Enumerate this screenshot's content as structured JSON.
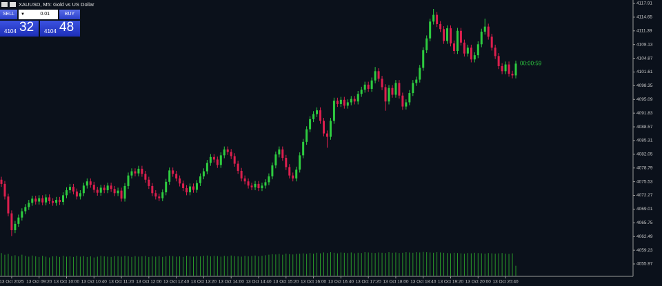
{
  "chart_data": {
    "type": "candlestick",
    "title": "XAUUSD, M5:  Gold vs US Dollar",
    "countdown": "00:00:59",
    "categories": [
      null,
      null,
      null,
      "13 Oct 2025",
      null,
      null,
      null,
      null,
      null,
      null,
      null,
      "13 Oct 09:20",
      null,
      null,
      null,
      null,
      null,
      null,
      null,
      "13 Oct 10:00",
      null,
      null,
      null,
      null,
      null,
      null,
      null,
      "13 Oct 10:40",
      null,
      null,
      null,
      null,
      null,
      null,
      null,
      "13 Oct 11:20",
      null,
      null,
      null,
      null,
      null,
      null,
      null,
      "13 Oct 12:00",
      null,
      null,
      null,
      null,
      null,
      null,
      null,
      "13 Oct 12:40",
      null,
      null,
      null,
      null,
      null,
      null,
      null,
      "13 Oct 13:20",
      null,
      null,
      null,
      null,
      null,
      null,
      null,
      "13 Oct 14:00",
      null,
      null,
      null,
      null,
      null,
      null,
      null,
      "13 Oct 14:40",
      null,
      null,
      null,
      null,
      null,
      null,
      null,
      "13 Oct 15:20",
      null,
      null,
      null,
      null,
      null,
      null,
      null,
      "13 Oct 16:00",
      null,
      null,
      null,
      null,
      null,
      null,
      null,
      "13 Oct 16:40",
      null,
      null,
      null,
      null,
      null,
      null,
      null,
      "13 Oct 17:20",
      null,
      null,
      null,
      null,
      null,
      null,
      null,
      "13 Oct 18:00",
      null,
      null,
      null,
      null,
      null,
      null,
      null,
      "13 Oct 18:40",
      null,
      null,
      null,
      null,
      null,
      null,
      null,
      "13 Oct 19:20",
      null,
      null,
      null,
      null,
      null,
      null,
      null,
      "13 Oct 20:00",
      null,
      null,
      null,
      null,
      null,
      null,
      null,
      "13 Oct 20:40",
      null,
      null,
      null
    ],
    "open": [
      4076,
      4075,
      4072,
      4068,
      4064,
      4065.5,
      4067,
      4068.5,
      4069.5,
      4070.5,
      4071.5,
      4070.8,
      4071.6,
      4070.6,
      4071.8,
      4070.9,
      4070.5,
      4071.2,
      4070.7,
      4072.3,
      4073.5,
      4074.3,
      4073.2,
      4072.0,
      4072.8,
      4074.6,
      4075.6,
      4074.8,
      4073.6,
      4072.9,
      4074.1,
      4073.5,
      4074.6,
      4073.8,
      4072.8,
      4073.4,
      4071.5,
      4074.5,
      4077.0,
      4078.0,
      4077.5,
      4078.6,
      4077.4,
      4076.0,
      4074.5,
      4072.8,
      4072.0,
      4071.6,
      4073.0,
      4075.5,
      4078.2,
      4077.4,
      4076.3,
      4075.1,
      4074.0,
      4073.0,
      4074.4,
      4073.6,
      4075.2,
      4076.8,
      4078.0,
      4080.0,
      4081.4,
      4080.8,
      4079.5,
      4081.8,
      4083.2,
      4082.6,
      4081.6,
      4079.8,
      4078.1,
      4076.3,
      4075.6,
      4074.6,
      4074.2,
      4075.0,
      4074.0,
      4074.6,
      4075.4,
      4076.8,
      4079.4,
      4082.0,
      4083.2,
      4081.2,
      4079.0,
      4077.0,
      4076.3,
      4078.4,
      4081.8,
      4085.0,
      4088.0,
      4090.4,
      4091.6,
      4092.5,
      4090.0,
      4087.0,
      4086.2,
      4090.0,
      4094.8,
      4094.0,
      4095.0,
      4093.6,
      4094.4,
      4095.2,
      4094.6,
      4096.4,
      4097.4,
      4098.6,
      4097.6,
      4099.6,
      4101.8,
      4100.0,
      4098.0,
      4094.6,
      4097.8,
      4096.2,
      4099.0,
      4096.0,
      4093.4,
      4094.4,
      4096.6,
      4099.0,
      4099.8,
      4102.6,
      4106.8,
      4109.6,
      4113.6,
      4115.2,
      4113.0,
      4111.8,
      4109.0,
      4112.0,
      4108.4,
      4106.6,
      4111.4,
      4108.6,
      4106.0,
      4107.4,
      4104.6,
      4105.6,
      4108.2,
      4111.2,
      4112.4,
      4110.0,
      4107.4,
      4105.4,
      4103.0,
      4101.8,
      4103.4,
      4101.2,
      4100.8
    ],
    "high": [
      4076.7,
      4075.7,
      4072.7,
      4068.7,
      4066.2,
      4067.7,
      4069.2,
      4070.2,
      4071.2,
      4072.2,
      4072.2,
      4072.3,
      4072.3,
      4072.5,
      4072.5,
      4071.6,
      4071.9,
      4071.9,
      4073.0,
      4074.2,
      4075.0,
      4075.0,
      4073.9,
      4073.5,
      4075.3,
      4076.3,
      4076.3,
      4075.5,
      4074.3,
      4074.8,
      4074.8,
      4075.3,
      4075.3,
      4074.5,
      4074.1,
      4074.1,
      4075.2,
      4077.7,
      4078.7,
      4078.7,
      4079.3,
      4079.3,
      4078.1,
      4076.7,
      4075.2,
      4073.5,
      4072.7,
      4073.7,
      4076.2,
      4078.9,
      4078.9,
      4078.1,
      4077.0,
      4075.8,
      4074.7,
      4075.1,
      4075.1,
      4075.9,
      4077.5,
      4078.7,
      4080.7,
      4082.1,
      4082.1,
      4081.5,
      4082.5,
      4083.9,
      4083.9,
      4083.3,
      4082.3,
      4080.5,
      4078.8,
      4077.0,
      4076.3,
      4075.3,
      4075.7,
      4075.7,
      4075.3,
      4076.1,
      4077.5,
      4080.1,
      4082.7,
      4083.9,
      4083.9,
      4081.9,
      4079.7,
      4077.7,
      4079.1,
      4082.5,
      4085.7,
      4088.7,
      4091.1,
      4092.3,
      4093.2,
      4093.2,
      4090.7,
      4087.7,
      4090.7,
      4095.5,
      4095.5,
      4095.7,
      4095.7,
      4095.1,
      4095.9,
      4095.9,
      4097.1,
      4098.1,
      4099.3,
      4099.3,
      4100.3,
      4102.8,
      4102.5,
      4100.7,
      4098.7,
      4098.5,
      4098.5,
      4099.7,
      4099.7,
      4096.7,
      4095.1,
      4097.3,
      4099.7,
      4100.5,
      4103.3,
      4107.5,
      4110.3,
      4114.3,
      4116.6,
      4115.9,
      4113.7,
      4112.5,
      4112.7,
      4112.7,
      4109.1,
      4112.1,
      4112.1,
      4109.3,
      4108.1,
      4108.1,
      4106.3,
      4108.9,
      4111.9,
      4114.3,
      4113.1,
      4110.7,
      4108.1,
      4106.1,
      4103.7,
      4104.1,
      4104.1,
      4101.9,
      4104.3
    ],
    "low": [
      4074.3,
      4071.3,
      4067.3,
      4062.6,
      4063.3,
      4064.8,
      4066.3,
      4067.8,
      4068.8,
      4069.8,
      4070.1,
      4070.1,
      4069.9,
      4069.9,
      4070.2,
      4069.8,
      4069.8,
      4070.0,
      4070.0,
      4071.6,
      4072.8,
      4072.5,
      4071.3,
      4071.3,
      4072.1,
      4073.9,
      4074.1,
      4072.9,
      4072.2,
      4072.2,
      4072.8,
      4072.8,
      4073.1,
      4072.1,
      4072.1,
      4070.8,
      4070.8,
      4073.8,
      4076.3,
      4076.8,
      4076.8,
      4076.7,
      4075.3,
      4073.8,
      4072.1,
      4071.3,
      4070.9,
      4070.9,
      4072.3,
      4074.8,
      4076.7,
      4075.6,
      4074.4,
      4073.3,
      4072.3,
      4072.3,
      4072.9,
      4072.9,
      4074.5,
      4076.1,
      4077.3,
      4079.3,
      4080.1,
      4078.8,
      4078.8,
      4081.1,
      4081.9,
      4080.9,
      4079.1,
      4077.4,
      4075.6,
      4074.9,
      4073.9,
      4073.5,
      4073.5,
      4073.3,
      4073.3,
      4073.9,
      4074.7,
      4076.1,
      4078.7,
      4081.3,
      4080.5,
      4078.3,
      4076.3,
      4075.6,
      4075.6,
      4077.7,
      4081.1,
      4084.3,
      4087.3,
      4089.7,
      4090.9,
      4089.3,
      4086.3,
      4083.6,
      4085.5,
      4089.3,
      4093.3,
      4093.3,
      4092.9,
      4092.9,
      4093.7,
      4093.9,
      4093.9,
      4095.7,
      4096.7,
      4096.9,
      4096.9,
      4098.9,
      4099.3,
      4097.3,
      4092.4,
      4093.9,
      4095.5,
      4095.5,
      4095.3,
      4092.6,
      4092.7,
      4093.7,
      4095.9,
      4098.3,
      4099.1,
      4101.9,
      4106.1,
      4108.9,
      4112.9,
      4112.3,
      4111.1,
      4108.3,
      4108.3,
      4107.7,
      4105.9,
      4105.9,
      4107.9,
      4105.3,
      4105.3,
      4103.9,
      4103.9,
      4104.9,
      4107.5,
      4110.5,
      4109.3,
      4106.7,
      4104.7,
      4102.3,
      4101.1,
      4101.1,
      4100.5,
      4100.1,
      4100.1
    ],
    "close": [
      4075,
      4072,
      4068,
      4064,
      4065.5,
      4067,
      4068.5,
      4069.5,
      4070.5,
      4071.5,
      4070.8,
      4071.6,
      4070.6,
      4071.8,
      4070.9,
      4070.5,
      4071.2,
      4070.7,
      4072.3,
      4073.5,
      4074.3,
      4073.2,
      4072.0,
      4072.8,
      4074.6,
      4075.6,
      4074.8,
      4073.6,
      4072.9,
      4074.1,
      4073.5,
      4074.6,
      4073.8,
      4072.8,
      4073.4,
      4071.5,
      4074.5,
      4077.0,
      4078.0,
      4077.5,
      4078.6,
      4077.4,
      4076.0,
      4074.5,
      4072.8,
      4072.0,
      4071.6,
      4073.0,
      4075.5,
      4078.2,
      4077.4,
      4076.3,
      4075.1,
      4074.0,
      4073.0,
      4074.4,
      4073.6,
      4075.2,
      4076.8,
      4078.0,
      4080.0,
      4081.4,
      4080.8,
      4079.5,
      4081.8,
      4083.2,
      4082.6,
      4081.6,
      4079.8,
      4078.1,
      4076.3,
      4075.6,
      4074.6,
      4074.2,
      4075.0,
      4074.0,
      4074.6,
      4075.4,
      4076.8,
      4079.4,
      4082.0,
      4083.2,
      4081.2,
      4079.0,
      4077.0,
      4076.3,
      4078.4,
      4081.8,
      4085.0,
      4088.0,
      4090.4,
      4091.6,
      4092.5,
      4090.0,
      4087.0,
      4086.2,
      4090.0,
      4094.8,
      4094.0,
      4095.0,
      4093.6,
      4094.4,
      4095.2,
      4094.6,
      4096.4,
      4097.4,
      4098.6,
      4097.6,
      4099.6,
      4101.8,
      4100.0,
      4098.0,
      4094.6,
      4097.8,
      4096.2,
      4099.0,
      4096.0,
      4093.4,
      4094.4,
      4096.6,
      4099.0,
      4099.8,
      4102.6,
      4106.8,
      4109.6,
      4113.6,
      4115.2,
      4113.0,
      4111.8,
      4109.0,
      4112.0,
      4108.4,
      4106.6,
      4111.4,
      4108.6,
      4106.0,
      4107.4,
      4104.6,
      4105.6,
      4108.2,
      4111.2,
      4112.4,
      4110.0,
      4107.4,
      4105.4,
      4103.0,
      4101.8,
      4103.4,
      4101.2,
      4100.8,
      4103.6
    ],
    "volume": [
      820,
      760,
      790,
      710,
      740,
      700,
      760,
      720,
      690,
      730,
      700,
      680,
      720,
      690,
      660,
      700,
      710,
      680,
      720,
      690,
      700,
      680,
      720,
      690,
      710,
      680,
      700,
      660,
      690,
      720,
      700,
      690,
      680,
      710,
      700,
      690,
      720,
      700,
      680,
      710,
      690,
      700,
      720,
      680,
      700,
      690,
      710,
      680,
      700,
      720,
      710,
      690,
      700,
      680,
      720,
      700,
      690,
      710,
      700,
      720,
      730,
      700,
      720,
      710,
      690,
      720,
      700,
      730,
      710,
      700,
      690,
      720,
      700,
      710,
      730,
      700,
      720,
      740,
      760,
      780,
      770,
      790,
      760,
      800,
      780,
      770,
      790,
      800,
      810,
      790,
      820,
      800,
      830,
      810,
      840,
      820,
      850,
      830,
      810,
      840,
      830,
      820,
      840,
      810,
      830,
      820,
      850,
      840,
      830,
      820,
      840,
      830,
      820,
      850,
      830,
      840,
      820,
      830,
      850,
      840,
      830,
      850,
      840,
      860,
      850,
      840,
      830,
      850,
      840,
      830,
      820,
      810,
      830,
      820,
      810,
      800,
      820,
      810,
      830,
      820,
      810,
      800,
      820,
      810,
      800,
      810,
      820,
      800,
      790,
      810,
      360
    ],
    "ylim": [
      4055.97,
      4117.91
    ],
    "yticks": [
      4117.91,
      4114.65,
      4111.39,
      4108.13,
      4104.87,
      4101.61,
      4098.35,
      4095.09,
      4091.83,
      4088.57,
      4085.31,
      4082.05,
      4078.79,
      4075.53,
      4072.27,
      4069.01,
      4065.75,
      4062.49,
      4059.23,
      4055.97
    ],
    "y2lim": [
      0,
      1000
    ],
    "grid": false,
    "bull_color": "#2ecc40",
    "bear_color": "#dc1f4e",
    "volume_color": "#2a9a2a"
  },
  "trade_panel": {
    "sell": "SELL",
    "lot": "0.01",
    "buy": "BUY",
    "bid_big": "4104",
    "bid_pips": "32",
    "ask_big": "4104",
    "ask_pips": "48"
  }
}
